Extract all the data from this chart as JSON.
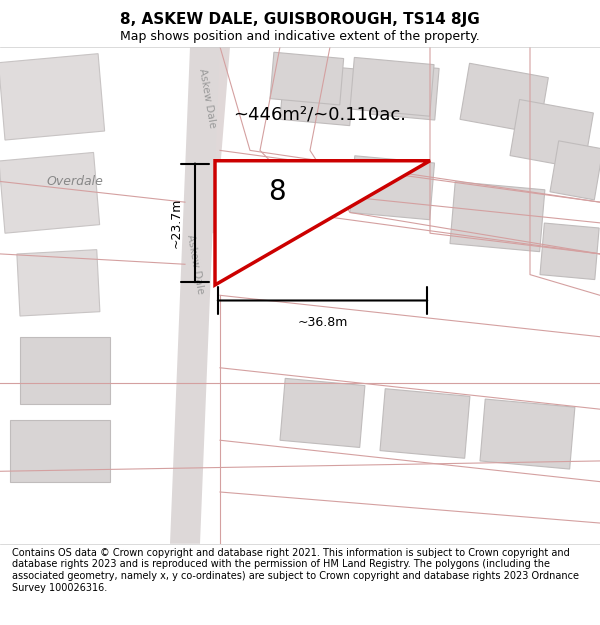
{
  "title": "8, ASKEW DALE, GUISBOROUGH, TS14 8JG",
  "subtitle": "Map shows position and indicative extent of the property.",
  "footer": "Contains OS data © Crown copyright and database right 2021. This information is subject to Crown copyright and database rights 2023 and is reproduced with the permission of HM Land Registry. The polygons (including the associated geometry, namely x, y co-ordinates) are subject to Crown copyright and database rights 2023 Ordnance Survey 100026316.",
  "bg_color": "#f5f5f5",
  "map_bg": "#ffffff",
  "road_color": "#e8c8c8",
  "building_color": "#d8d8d8",
  "boundary_color": "#cc0000",
  "dim_color": "#000000",
  "label_color": "#333333",
  "area_label": "~446m²/~0.110ac.",
  "property_label": "8",
  "dim_width": "~36.8m",
  "dim_height": "~23.7m",
  "street_label_top": "Askew Dale",
  "street_label_bottom": "Askew Dale",
  "overdale_label": "Overdale"
}
